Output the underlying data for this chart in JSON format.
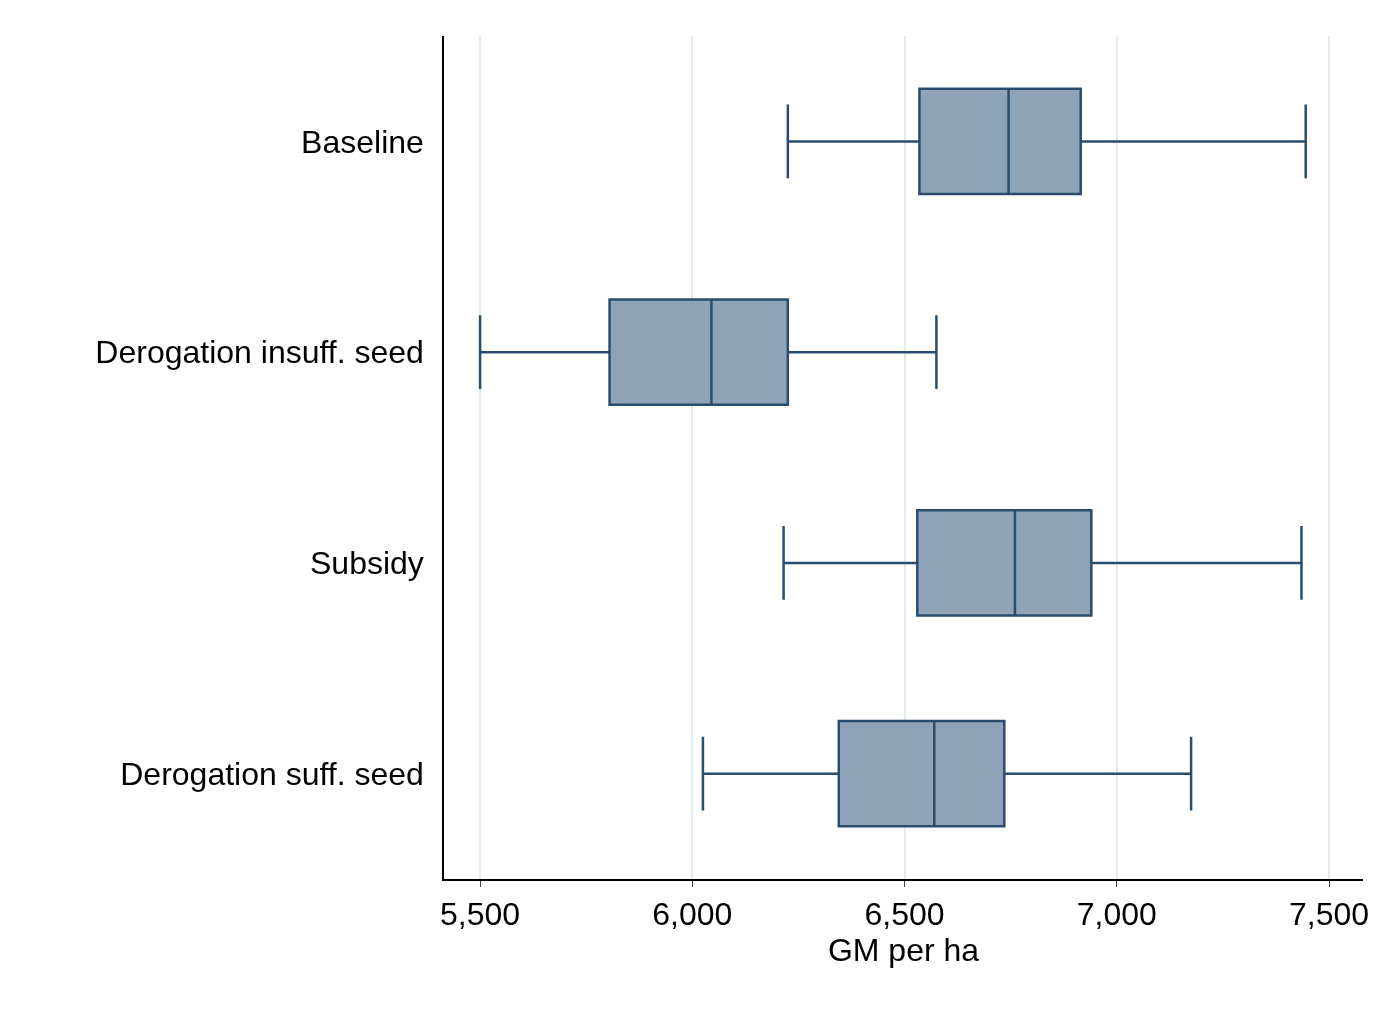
{
  "chart_data": {
    "type": "box",
    "orientation": "horizontal",
    "xlabel": "GM per ha",
    "categories": [
      "Baseline",
      "Derogation insuff. seed",
      "Subsidy",
      "Derogation suff. seed"
    ],
    "boxes": [
      {
        "low": 6225,
        "q1": 6535,
        "median": 6745,
        "q3": 6915,
        "high": 7445
      },
      {
        "low": 5500,
        "q1": 5805,
        "median": 6045,
        "q3": 6225,
        "high": 6575
      },
      {
        "low": 6215,
        "q1": 6530,
        "median": 6760,
        "q3": 6940,
        "high": 7435
      },
      {
        "low": 6025,
        "q1": 6345,
        "median": 6570,
        "q3": 6735,
        "high": 7175
      }
    ],
    "color": "#8ea3b8",
    "xlim": [
      5415,
      7580
    ],
    "xticks": [
      {
        "value": 5500,
        "label": "5,500"
      },
      {
        "value": 6000,
        "label": "6,000"
      },
      {
        "value": 6500,
        "label": "6,500"
      },
      {
        "value": 7000,
        "label": "7,000"
      },
      {
        "value": 7500,
        "label": "7,500"
      }
    ],
    "grid": "x"
  }
}
